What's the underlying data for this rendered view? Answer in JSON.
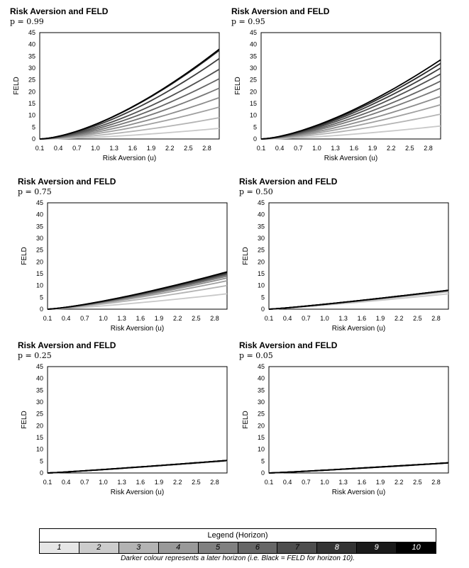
{
  "chart_data": [
    {
      "type": "line",
      "title": "Risk Aversion and FELD",
      "subtitle": "p = 0.99",
      "xlabel": "Risk Aversion (u)",
      "ylabel": "FELD",
      "xlim": [
        0.1,
        3.0
      ],
      "ylim": [
        0,
        45
      ],
      "xticks": [
        "0.1",
        "0.4",
        "0.7",
        "1.0",
        "1.3",
        "1.6",
        "1.9",
        "2.2",
        "2.5",
        "2.8"
      ],
      "yticks": [
        "0",
        "5",
        "10",
        "15",
        "20",
        "25",
        "30",
        "35",
        "40",
        "45"
      ],
      "series_end_values": [
        4.5,
        9,
        13.5,
        17.5,
        21.5,
        25.5,
        29.5,
        34,
        37.5,
        38
      ],
      "series_exponent": 1.55
    },
    {
      "type": "line",
      "title": "Risk Aversion and FELD",
      "subtitle": "p = 0.95",
      "xlabel": "Risk Aversion (u)",
      "ylabel": "FELD",
      "xlim": [
        0.1,
        3.0
      ],
      "ylim": [
        0,
        45
      ],
      "xticks": [
        "0.1",
        "0.4",
        "0.7",
        "1.0",
        "1.3",
        "1.6",
        "1.9",
        "2.2",
        "2.5",
        "2.8"
      ],
      "yticks": [
        "0",
        "5",
        "10",
        "15",
        "20",
        "25",
        "30",
        "35",
        "40",
        "45"
      ],
      "series_end_values": [
        5.5,
        10.5,
        14.5,
        18,
        21.5,
        24.5,
        27.5,
        30,
        32,
        33.5
      ],
      "series_exponent": 1.5
    },
    {
      "type": "line",
      "title": "Risk Aversion and FELD",
      "subtitle": "p = 0.75",
      "xlabel": "Risk Aversion (u)",
      "ylabel": "FELD",
      "xlim": [
        0.1,
        3.0
      ],
      "ylim": [
        0,
        45
      ],
      "xticks": [
        "0.1",
        "0.4",
        "0.7",
        "1.0",
        "1.3",
        "1.6",
        "1.9",
        "2.2",
        "2.5",
        "2.8"
      ],
      "yticks": [
        "0",
        "5",
        "10",
        "15",
        "20",
        "25",
        "30",
        "35",
        "40",
        "45"
      ],
      "series_end_values": [
        6.5,
        10,
        12,
        13.2,
        14,
        14.6,
        15,
        15.3,
        15.6,
        15.8
      ],
      "series_exponent": 1.3
    },
    {
      "type": "line",
      "title": "Risk Aversion and FELD",
      "subtitle": "p = 0.50",
      "xlabel": "Risk Aversion (u)",
      "ylabel": "FELD",
      "xlim": [
        0.1,
        3.0
      ],
      "ylim": [
        0,
        45
      ],
      "xticks": [
        "0.1",
        "0.4",
        "0.7",
        "1.0",
        "1.3",
        "1.6",
        "1.9",
        "2.2",
        "2.5",
        "2.8"
      ],
      "yticks": [
        "0",
        "5",
        "10",
        "15",
        "20",
        "25",
        "30",
        "35",
        "40",
        "45"
      ],
      "series_end_values": [
        6.5,
        7.4,
        7.7,
        7.85,
        7.9,
        7.95,
        8,
        8,
        8,
        8
      ],
      "series_exponent": 1.15
    },
    {
      "type": "line",
      "title": "Risk Aversion and FELD",
      "subtitle": "p = 0.25",
      "xlabel": "Risk Aversion (u)",
      "ylabel": "FELD",
      "xlim": [
        0.1,
        3.0
      ],
      "ylim": [
        0,
        45
      ],
      "xticks": [
        "0.1",
        "0.4",
        "0.7",
        "1.0",
        "1.3",
        "1.6",
        "1.9",
        "2.2",
        "2.5",
        "2.8"
      ],
      "yticks": [
        "0",
        "5",
        "10",
        "15",
        "20",
        "25",
        "30",
        "35",
        "40",
        "45"
      ],
      "series_end_values": [
        5,
        5.2,
        5.3,
        5.3,
        5.3,
        5.3,
        5.3,
        5.3,
        5.3,
        5.3
      ],
      "series_exponent": 1.1
    },
    {
      "type": "line",
      "title": "Risk Aversion and FELD",
      "subtitle": "p = 0.05",
      "xlabel": "Risk Aversion (u)",
      "ylabel": "FELD",
      "xlim": [
        0.1,
        3.0
      ],
      "ylim": [
        0,
        45
      ],
      "xticks": [
        "0.1",
        "0.4",
        "0.7",
        "1.0",
        "1.3",
        "1.6",
        "1.9",
        "2.2",
        "2.5",
        "2.8"
      ],
      "yticks": [
        "0",
        "5",
        "10",
        "15",
        "20",
        "25",
        "30",
        "35",
        "40",
        "45"
      ],
      "series_end_values": [
        4.1,
        4.2,
        4.3,
        4.3,
        4.3,
        4.3,
        4.3,
        4.3,
        4.3,
        4.3
      ],
      "series_exponent": 1.1
    }
  ],
  "series_colors": [
    "#c8c8c8",
    "#b4b4b4",
    "#a0a0a0",
    "#8c8c8c",
    "#787878",
    "#646464",
    "#505050",
    "#3c3c3c",
    "#282828",
    "#000000"
  ],
  "legend": {
    "title": "Legend (Horizon)",
    "items": [
      "1",
      "2",
      "3",
      "4",
      "5",
      "6",
      "7",
      "8",
      "9",
      "10"
    ],
    "cell_colors": [
      "#e6e6e6",
      "#cccccc",
      "#b3b3b3",
      "#999999",
      "#808080",
      "#666666",
      "#4d4d4d",
      "#333333",
      "#1a1a1a",
      "#000000"
    ],
    "text_colors": [
      "#000000",
      "#000000",
      "#000000",
      "#000000",
      "#000000",
      "#000000",
      "#000000",
      "#ffffff",
      "#ffffff",
      "#ffffff"
    ],
    "note": "Darker colour represents a later horizon (i.e. Black = FELD for horizon 10)."
  }
}
